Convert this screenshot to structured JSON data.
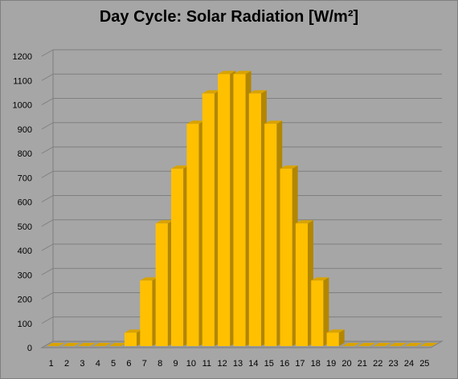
{
  "chart_data": {
    "type": "bar",
    "title": "Day Cycle: Solar Radiation [W/m²]",
    "xlabel": "",
    "ylabel": "",
    "ylim": [
      0,
      1200
    ],
    "yticks": [
      0,
      100,
      200,
      300,
      400,
      500,
      600,
      700,
      800,
      900,
      1000,
      1100,
      1200
    ],
    "categories": [
      "1",
      "2",
      "3",
      "4",
      "5",
      "6",
      "7",
      "8",
      "9",
      "10",
      "11",
      "12",
      "13",
      "14",
      "15",
      "16",
      "17",
      "18",
      "19",
      "20",
      "21",
      "22",
      "23",
      "24",
      "25"
    ],
    "values": [
      0,
      0,
      0,
      0,
      0,
      55,
      270,
      505,
      730,
      915,
      1040,
      1120,
      1120,
      1040,
      915,
      730,
      505,
      270,
      55,
      0,
      0,
      0,
      0,
      0,
      0
    ],
    "grid": true,
    "legend": "none",
    "colors": {
      "bar_front": "#ffc000",
      "bar_side": "#b38600",
      "bar_top": "#d9a300",
      "grid": "#7f7f7f",
      "background": "#a6a6a6"
    }
  }
}
